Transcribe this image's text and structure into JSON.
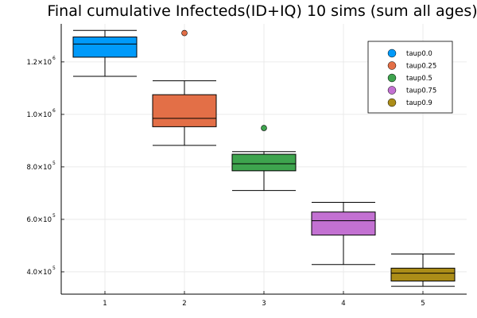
{
  "chart_data": {
    "type": "box",
    "title": "Final cumulative Infecteds(ID+IQ) 10 sims (sum all ages)",
    "xlabel": "",
    "ylabel": "",
    "x_ticks": [
      "1",
      "2",
      "3",
      "4",
      "5"
    ],
    "y_ticks": [
      {
        "mantissa": "4.0×10",
        "exp": "5",
        "value": 400000
      },
      {
        "mantissa": "6.0×10",
        "exp": "5",
        "value": 600000
      },
      {
        "mantissa": "8.0×10",
        "exp": "5",
        "value": 800000
      },
      {
        "mantissa": "1.0×10",
        "exp": "6",
        "value": 1000000
      },
      {
        "mantissa": "1.2×10",
        "exp": "6",
        "value": 1200000
      }
    ],
    "ylim": [
      315000,
      1345000
    ],
    "xlim": [
      0.45,
      5.55
    ],
    "grid": true,
    "legend_position": "top-right",
    "series": [
      {
        "name": "taup0.0",
        "x": 1,
        "color": "#009AFA",
        "min": 1145000,
        "q1": 1218000,
        "median": 1268000,
        "q3": 1295000,
        "max": 1320000,
        "outliers": []
      },
      {
        "name": "taup0.25",
        "x": 2,
        "color": "#E36F47",
        "min": 882000,
        "q1": 953000,
        "median": 985000,
        "q3": 1075000,
        "max": 1128000,
        "outliers": [
          1310000
        ]
      },
      {
        "name": "taup0.5",
        "x": 3,
        "color": "#3EA44E",
        "min": 710000,
        "q1": 785000,
        "median": 812000,
        "q3": 848000,
        "max": 858000,
        "outliers": [
          948000
        ]
      },
      {
        "name": "taup0.75",
        "x": 4,
        "color": "#C371D2",
        "min": 428000,
        "q1": 540000,
        "median": 595000,
        "q3": 628000,
        "max": 665000,
        "outliers": []
      },
      {
        "name": "taup0.9",
        "x": 5,
        "color": "#AC8D18",
        "min": 345000,
        "q1": 365000,
        "median": 395000,
        "q3": 414000,
        "max": 468000,
        "outliers": []
      }
    ]
  }
}
